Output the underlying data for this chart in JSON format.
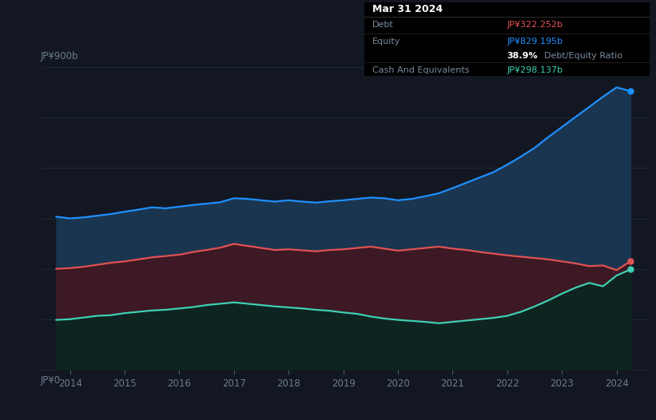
{
  "background_color": "#131722",
  "chart_bg_color": "#131722",
  "tooltip": {
    "title": "Mar 31 2024",
    "debt_label": "Debt",
    "debt_value": "JP¥322.252b",
    "equity_label": "Equity",
    "equity_value": "JP¥829.195b",
    "ratio_value": "38.9%",
    "ratio_label": "Debt/Equity Ratio",
    "cash_label": "Cash And Equivalents",
    "cash_value": "JP¥298.137b"
  },
  "ylabel_top": "JP¥900b",
  "ylabel_bottom": "JP¥0",
  "xlim": [
    2013.5,
    2024.6
  ],
  "ylim": [
    0,
    900
  ],
  "equity_color": "#1e90ff",
  "debt_color": "#e05252",
  "cash_color": "#3ecfb2",
  "equity_fill_color": "#1a3550",
  "debt_fill_color": "#3d1825",
  "cash_fill_color": "#0d2420",
  "grid_color": "#1e2a38",
  "tick_color": "#6a7d8e",
  "legend_bg": "#131722",
  "legend_border": "#2a3a4a",
  "years": [
    2013.75,
    2014.0,
    2014.25,
    2014.5,
    2014.75,
    2015.0,
    2015.25,
    2015.5,
    2015.75,
    2016.0,
    2016.25,
    2016.5,
    2016.75,
    2017.0,
    2017.25,
    2017.5,
    2017.75,
    2018.0,
    2018.25,
    2018.5,
    2018.75,
    2019.0,
    2019.25,
    2019.5,
    2019.75,
    2020.0,
    2020.25,
    2020.5,
    2020.75,
    2021.0,
    2021.25,
    2021.5,
    2021.75,
    2022.0,
    2022.25,
    2022.5,
    2022.75,
    2023.0,
    2023.25,
    2023.5,
    2023.75,
    2024.0,
    2024.25
  ],
  "equity": [
    455,
    450,
    453,
    458,
    463,
    470,
    476,
    483,
    480,
    485,
    490,
    494,
    498,
    510,
    508,
    504,
    500,
    504,
    500,
    497,
    501,
    504,
    508,
    512,
    510,
    504,
    508,
    516,
    525,
    540,
    556,
    572,
    588,
    610,
    634,
    660,
    692,
    722,
    752,
    782,
    812,
    840,
    829
  ],
  "debt": [
    300,
    302,
    306,
    312,
    318,
    322,
    328,
    334,
    338,
    342,
    350,
    356,
    363,
    374,
    368,
    362,
    356,
    358,
    355,
    352,
    356,
    358,
    362,
    366,
    360,
    354,
    358,
    362,
    366,
    360,
    356,
    350,
    345,
    340,
    336,
    332,
    328,
    322,
    316,
    308,
    310,
    296,
    322
  ],
  "cash": [
    148,
    150,
    155,
    160,
    162,
    168,
    172,
    176,
    178,
    182,
    186,
    192,
    196,
    200,
    196,
    192,
    188,
    185,
    182,
    178,
    175,
    170,
    166,
    158,
    152,
    148,
    145,
    142,
    138,
    142,
    146,
    150,
    154,
    160,
    172,
    188,
    206,
    226,
    244,
    258,
    248,
    280,
    298
  ]
}
